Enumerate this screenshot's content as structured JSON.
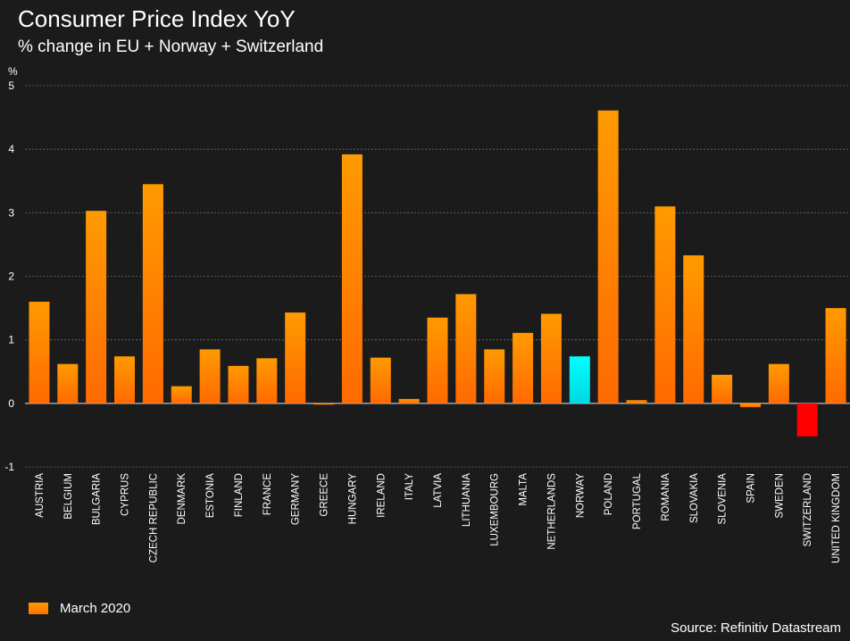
{
  "header": {
    "title": "Consumer Price Index YoY",
    "subtitle": "% change in EU + Norway + Switzerland",
    "unit": "%"
  },
  "legend": {
    "label": "March 2020"
  },
  "footer": {
    "source": "Source: Refinitiv Datastream"
  },
  "colors": {
    "background": "#1b1b1b",
    "bar_top": "#ff9a00",
    "bar_bottom": "#ff6a00",
    "highlight": "#00ffff",
    "negative_highlight": "#ff0000"
  },
  "chart_data": {
    "type": "bar",
    "title": "Consumer Price Index YoY",
    "subtitle": "% change in EU + Norway + Switzerland",
    "ylabel": "%",
    "ylim": [
      -1,
      5
    ],
    "yticks": [
      -1,
      0,
      1,
      2,
      3,
      4,
      5
    ],
    "grid": true,
    "legend_position": "bottom-left",
    "categories": [
      "AUSTRIA",
      "BELGIUM",
      "BULGARIA",
      "CYPRUS",
      "CZECH REPUBLIC",
      "DENMARK",
      "ESTONIA",
      "FINLAND",
      "FRANCE",
      "GERMANY",
      "GREECE",
      "HUNGARY",
      "IRELAND",
      "ITALY",
      "LATVIA",
      "LITHUANIA",
      "LUXEMBOURG",
      "MALTA",
      "NETHERLANDS",
      "NORWAY",
      "POLAND",
      "PORTUGAL",
      "ROMANIA",
      "SLOVAKIA",
      "SLOVENIA",
      "SPAIN",
      "SWEDEN",
      "SWITZERLAND",
      "UNITED KINGDOM"
    ],
    "series": [
      {
        "name": "March 2020",
        "values": [
          1.6,
          0.62,
          3.03,
          0.74,
          3.45,
          0.27,
          0.85,
          0.59,
          0.71,
          1.43,
          -0.02,
          3.92,
          0.72,
          0.07,
          1.35,
          1.72,
          0.85,
          1.11,
          1.41,
          0.74,
          4.61,
          0.05,
          3.1,
          2.33,
          0.45,
          -0.06,
          0.62,
          -0.52,
          1.5
        ]
      }
    ],
    "highlights": {
      "NORWAY": "#00ffff",
      "SWITZERLAND": "#ff0000"
    }
  }
}
